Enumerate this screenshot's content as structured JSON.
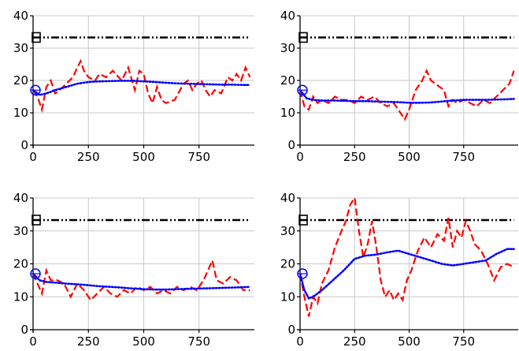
{
  "chart_data": [
    {
      "type": "line",
      "xlim": [
        0,
        1000
      ],
      "ylim": [
        0,
        40
      ],
      "x_ticks": [
        0,
        250,
        500,
        750
      ],
      "y_ticks": [
        0,
        10,
        20,
        30,
        40
      ],
      "x_tick_labels": [
        "0",
        "250",
        "500",
        "750"
      ],
      "y_tick_labels": [
        "0",
        "10",
        "20",
        "30",
        "40"
      ],
      "grid": true,
      "series": [
        {
          "style": "dash-dot-dot",
          "color": "#000000",
          "marker": "square",
          "x": [
            0,
            980
          ],
          "y": [
            33.3,
            33.3
          ]
        },
        {
          "style": "dashed",
          "color": "#ff0000",
          "x": [
            0,
            20,
            40,
            60,
            80,
            100,
            120,
            150,
            180,
            200,
            215,
            230,
            250,
            280,
            300,
            330,
            360,
            400,
            430,
            460,
            480,
            500,
            520,
            540,
            560,
            580,
            600,
            640,
            680,
            700,
            720,
            740,
            760,
            780,
            800,
            820,
            850,
            880,
            900,
            920,
            940,
            960,
            980
          ],
          "y": [
            17,
            15,
            11,
            18,
            20,
            16,
            17,
            19,
            21,
            24,
            26,
            23,
            21,
            20,
            22,
            21,
            23,
            20,
            24,
            17,
            23,
            22,
            16,
            13,
            18,
            14,
            13,
            14,
            19,
            20,
            17,
            19,
            20,
            17,
            15,
            17,
            16,
            21,
            20,
            22,
            20,
            24,
            21
          ]
        },
        {
          "style": "dotted",
          "color": "#0000ff",
          "marker": "circle-plus",
          "x": [
            0,
            30,
            60,
            100,
            150,
            200,
            250,
            300,
            350,
            400,
            450,
            500,
            550,
            600,
            650,
            700,
            750,
            800,
            850,
            900,
            950,
            980
          ],
          "y": [
            17,
            15.5,
            16,
            17,
            18,
            19,
            19.5,
            19.7,
            19.8,
            19.9,
            19.9,
            19.7,
            19.5,
            19.3,
            19.1,
            19,
            18.9,
            18.8,
            18.7,
            18.7,
            18.6,
            18.6
          ]
        }
      ]
    },
    {
      "type": "line",
      "xlim": [
        0,
        1000
      ],
      "ylim": [
        0,
        40
      ],
      "x_ticks": [
        0,
        250,
        500,
        750
      ],
      "y_ticks": [
        0,
        10,
        20,
        30,
        40
      ],
      "x_tick_labels": [
        "0",
        "250",
        "500",
        "750"
      ],
      "y_tick_labels": [
        "0",
        "10",
        "20",
        "30",
        "40"
      ],
      "grid": true,
      "series": [
        {
          "style": "dash-dot-dot",
          "color": "#000000",
          "marker": "square",
          "x": [
            0,
            980
          ],
          "y": [
            33.3,
            33.3
          ]
        },
        {
          "style": "dashed",
          "color": "#ff0000",
          "x": [
            0,
            20,
            40,
            60,
            80,
            100,
            130,
            160,
            190,
            220,
            250,
            280,
            310,
            340,
            370,
            400,
            430,
            460,
            480,
            500,
            530,
            560,
            580,
            600,
            620,
            640,
            660,
            680,
            700,
            720,
            750,
            780,
            810,
            840,
            870,
            900,
            930,
            960,
            980
          ],
          "y": [
            17,
            12,
            11,
            15,
            13,
            14,
            13,
            15,
            14,
            14,
            13,
            15,
            14,
            15,
            13,
            12,
            13,
            10,
            8,
            11,
            17,
            20,
            23,
            20,
            19,
            18,
            17,
            12,
            14,
            13,
            14,
            13,
            12,
            14,
            13,
            15,
            17,
            19,
            23
          ]
        },
        {
          "style": "dotted",
          "color": "#0000ff",
          "marker": "circle-plus",
          "x": [
            0,
            30,
            60,
            100,
            150,
            200,
            250,
            300,
            350,
            400,
            450,
            500,
            550,
            600,
            650,
            700,
            750,
            800,
            850,
            900,
            950,
            980
          ],
          "y": [
            17,
            14.5,
            14,
            13.8,
            13.8,
            13.7,
            13.6,
            13.6,
            13.5,
            13.4,
            13.3,
            13.1,
            13.1,
            13.2,
            13.5,
            13.8,
            14,
            14,
            14,
            14.1,
            14.2,
            14.3
          ]
        }
      ]
    },
    {
      "type": "line",
      "xlim": [
        0,
        1000
      ],
      "ylim": [
        0,
        40
      ],
      "x_ticks": [
        0,
        250,
        500,
        750
      ],
      "y_ticks": [
        0,
        10,
        20,
        30,
        40
      ],
      "x_tick_labels": [
        "0",
        "250",
        "500",
        "750"
      ],
      "y_tick_labels": [
        "0",
        "10",
        "20",
        "30",
        "40"
      ],
      "grid": true,
      "series": [
        {
          "style": "dash-dot-dot",
          "color": "#000000",
          "marker": "square",
          "x": [
            0,
            980
          ],
          "y": [
            33.3,
            33.3
          ]
        },
        {
          "style": "dashed",
          "color": "#ff0000",
          "x": [
            0,
            20,
            40,
            60,
            80,
            110,
            140,
            170,
            200,
            230,
            260,
            290,
            320,
            350,
            380,
            410,
            440,
            470,
            500,
            530,
            560,
            590,
            620,
            650,
            680,
            710,
            740,
            770,
            790,
            810,
            830,
            860,
            890,
            920,
            950,
            980
          ],
          "y": [
            17,
            14,
            11,
            18,
            15,
            15,
            14,
            10,
            14,
            12,
            9,
            11,
            13,
            11,
            10,
            12,
            11,
            13,
            12,
            13,
            11,
            12,
            11,
            13,
            12,
            13,
            12,
            15,
            18,
            21,
            15,
            14,
            16,
            15,
            12,
            12
          ]
        },
        {
          "style": "dotted",
          "color": "#0000ff",
          "marker": "circle-plus",
          "x": [
            0,
            30,
            60,
            100,
            150,
            200,
            250,
            300,
            350,
            400,
            450,
            500,
            550,
            600,
            650,
            700,
            750,
            800,
            850,
            900,
            950,
            980
          ],
          "y": [
            17,
            15,
            14.5,
            14.3,
            14,
            13.8,
            13.5,
            13.2,
            13,
            12.8,
            12.5,
            12.3,
            12.2,
            12.2,
            12.3,
            12.4,
            12.5,
            12.6,
            12.7,
            12.8,
            12.9,
            13
          ]
        }
      ]
    },
    {
      "type": "line",
      "xlim": [
        0,
        1000
      ],
      "ylim": [
        0,
        40
      ],
      "x_ticks": [
        0,
        250,
        500,
        750
      ],
      "y_ticks": [
        0,
        10,
        20,
        30,
        40
      ],
      "x_tick_labels": [
        "0",
        "250",
        "500",
        "750"
      ],
      "y_tick_labels": [
        "0",
        "10",
        "20",
        "30",
        "40"
      ],
      "grid": true,
      "series": [
        {
          "style": "dash-dot-dot",
          "color": "#000000",
          "marker": "square",
          "x": [
            0,
            980
          ],
          "y": [
            33.3,
            33.3
          ]
        },
        {
          "style": "dashed",
          "color": "#ff0000",
          "x": [
            0,
            20,
            40,
            60,
            80,
            100,
            130,
            160,
            190,
            210,
            230,
            250,
            270,
            290,
            310,
            330,
            350,
            370,
            390,
            410,
            430,
            450,
            470,
            490,
            510,
            540,
            570,
            600,
            630,
            660,
            680,
            700,
            720,
            740,
            760,
            780,
            800,
            830,
            860,
            890,
            920,
            950,
            980
          ],
          "y": [
            17,
            10,
            4,
            10,
            8,
            14,
            18,
            25,
            30,
            33,
            38,
            40,
            30,
            22,
            26,
            33,
            25,
            15,
            10,
            12,
            9,
            11,
            9,
            15,
            18,
            24,
            28,
            25,
            29,
            27,
            34,
            25,
            30,
            28,
            33,
            30,
            26,
            24,
            20,
            15,
            19,
            20,
            19
          ]
        },
        {
          "style": "dotted",
          "color": "#0000ff",
          "marker": "circle-plus",
          "x": [
            0,
            20,
            40,
            60,
            100,
            150,
            200,
            250,
            300,
            350,
            400,
            450,
            500,
            550,
            600,
            650,
            700,
            750,
            800,
            850,
            900,
            950,
            980
          ],
          "y": [
            17,
            12,
            9.5,
            10,
            12,
            15,
            18,
            21.5,
            22.5,
            22.8,
            23.5,
            24,
            23,
            22,
            21,
            20,
            19.5,
            20,
            20.5,
            21,
            23,
            24.5,
            24.5
          ]
        }
      ]
    }
  ]
}
